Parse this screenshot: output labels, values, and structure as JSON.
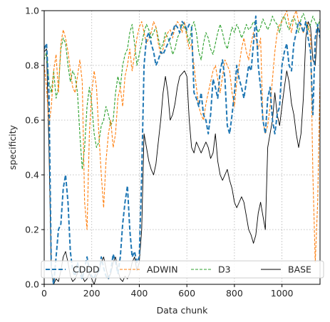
{
  "chart_data": {
    "type": "line",
    "xlabel": "Data chunk",
    "ylabel": "specificity",
    "xlim": [
      0,
      1160
    ],
    "ylim": [
      0,
      1.0
    ],
    "xticks": [
      0,
      200,
      400,
      600,
      800,
      1000
    ],
    "xtick_labels": [
      "0",
      "200",
      "400",
      "600",
      "800",
      "1000"
    ],
    "yticks": [
      0,
      0.2,
      0.4,
      0.6,
      0.8,
      1.0
    ],
    "ytick_labels": [
      "0.0",
      "0.2",
      "0.4",
      "0.6",
      "0.8",
      "1.0"
    ],
    "grid": true,
    "legend_position": "lower center",
    "series": [
      {
        "name": "CDDD",
        "color": "#1f77b4",
        "style": "dashed-thick",
        "x": [
          0,
          10,
          20,
          30,
          40,
          50,
          60,
          70,
          80,
          90,
          100,
          110,
          120,
          130,
          140,
          150,
          160,
          170,
          180,
          190,
          200,
          210,
          220,
          230,
          240,
          250,
          260,
          270,
          280,
          290,
          300,
          310,
          320,
          330,
          340,
          350,
          360,
          370,
          380,
          390,
          400,
          410,
          420,
          430,
          440,
          450,
          460,
          470,
          480,
          490,
          500,
          510,
          520,
          530,
          540,
          550,
          560,
          570,
          580,
          590,
          600,
          610,
          620,
          630,
          640,
          650,
          660,
          670,
          680,
          690,
          700,
          710,
          720,
          730,
          740,
          750,
          760,
          770,
          780,
          790,
          800,
          810,
          820,
          830,
          840,
          850,
          860,
          870,
          880,
          890,
          900,
          910,
          920,
          930,
          940,
          950,
          960,
          970,
          980,
          990,
          1000,
          1010,
          1020,
          1030,
          1040,
          1050,
          1060,
          1070,
          1080,
          1090,
          1100,
          1110,
          1120,
          1130,
          1140,
          1150,
          1160
        ],
        "values": [
          0.86,
          0.88,
          0.7,
          0.05,
          0.0,
          0.1,
          0.2,
          0.22,
          0.35,
          0.4,
          0.3,
          0.12,
          0.05,
          0.03,
          0.08,
          0.04,
          0.02,
          0.06,
          0.1,
          0.05,
          0.03,
          0.02,
          0.05,
          0.04,
          0.1,
          0.06,
          0.03,
          0.02,
          0.05,
          0.11,
          0.08,
          0.04,
          0.1,
          0.22,
          0.3,
          0.36,
          0.2,
          0.1,
          0.12,
          0.08,
          0.1,
          0.4,
          0.8,
          0.9,
          0.92,
          0.88,
          0.85,
          0.8,
          0.82,
          0.85,
          0.84,
          0.86,
          0.88,
          0.9,
          0.92,
          0.95,
          0.94,
          0.92,
          0.96,
          0.95,
          0.93,
          0.95,
          0.94,
          0.7,
          0.68,
          0.65,
          0.7,
          0.62,
          0.6,
          0.55,
          0.62,
          0.75,
          0.72,
          0.68,
          0.78,
          0.82,
          0.75,
          0.58,
          0.55,
          0.62,
          0.7,
          0.8,
          0.75,
          0.72,
          0.68,
          0.74,
          0.8,
          0.78,
          0.88,
          0.98,
          0.8,
          0.72,
          0.6,
          0.55,
          0.68,
          0.72,
          0.6,
          0.55,
          0.62,
          0.65,
          0.8,
          0.85,
          0.88,
          0.8,
          0.78,
          0.88,
          0.92,
          0.96,
          0.95,
          0.92,
          0.96,
          0.9,
          0.85,
          0.62,
          0.9,
          0.95,
          0.9
        ]
      },
      {
        "name": "ADWIN",
        "color": "#ff7f0e",
        "style": "dashed-thin",
        "x": [
          0,
          10,
          20,
          30,
          40,
          50,
          60,
          70,
          80,
          90,
          100,
          110,
          120,
          130,
          140,
          150,
          160,
          170,
          180,
          190,
          200,
          210,
          220,
          230,
          240,
          250,
          260,
          270,
          280,
          290,
          300,
          310,
          320,
          330,
          340,
          350,
          360,
          370,
          380,
          390,
          400,
          410,
          420,
          430,
          440,
          450,
          460,
          470,
          480,
          490,
          500,
          510,
          520,
          530,
          540,
          550,
          560,
          570,
          580,
          590,
          600,
          610,
          620,
          630,
          640,
          650,
          660,
          670,
          680,
          690,
          700,
          710,
          720,
          730,
          740,
          750,
          760,
          770,
          780,
          790,
          800,
          810,
          820,
          830,
          840,
          850,
          860,
          870,
          880,
          890,
          900,
          910,
          920,
          930,
          940,
          950,
          960,
          970,
          980,
          990,
          1000,
          1010,
          1020,
          1030,
          1040,
          1050,
          1060,
          1070,
          1080,
          1090,
          1100,
          1110,
          1120,
          1130,
          1140,
          1150,
          1160
        ],
        "values": [
          0.8,
          0.72,
          0.58,
          0.65,
          0.78,
          0.84,
          0.7,
          0.88,
          0.93,
          0.9,
          0.85,
          0.78,
          0.72,
          0.7,
          0.76,
          0.82,
          0.74,
          0.3,
          0.2,
          0.55,
          0.7,
          0.78,
          0.72,
          0.55,
          0.4,
          0.28,
          0.45,
          0.55,
          0.6,
          0.5,
          0.55,
          0.68,
          0.72,
          0.65,
          0.76,
          0.8,
          0.86,
          0.78,
          0.84,
          0.9,
          0.94,
          0.96,
          0.92,
          0.88,
          0.9,
          0.92,
          0.96,
          0.94,
          0.88,
          0.84,
          0.86,
          0.9,
          0.92,
          0.93,
          0.9,
          0.94,
          0.96,
          0.95,
          0.92,
          0.96,
          0.9,
          0.86,
          0.88,
          0.8,
          0.72,
          0.65,
          0.62,
          0.6,
          0.66,
          0.7,
          0.74,
          0.78,
          0.8,
          0.75,
          0.7,
          0.76,
          0.82,
          0.8,
          0.78,
          0.7,
          0.65,
          0.74,
          0.8,
          0.86,
          0.9,
          0.85,
          0.82,
          0.88,
          0.92,
          0.9,
          0.86,
          0.9,
          0.6,
          0.55,
          0.58,
          0.65,
          0.75,
          0.85,
          0.92,
          0.95,
          0.96,
          0.98,
          1.0,
          0.95,
          0.92,
          0.98,
          1.0,
          0.96,
          0.94,
          0.92,
          0.96,
          0.95,
          0.9,
          0.4,
          0.08,
          0.3,
          0.75
        ]
      },
      {
        "name": "D3",
        "color": "#2ca02c",
        "style": "dashed-thin",
        "x": [
          0,
          10,
          20,
          30,
          40,
          50,
          60,
          70,
          80,
          90,
          100,
          110,
          120,
          130,
          140,
          150,
          160,
          170,
          180,
          190,
          200,
          210,
          220,
          230,
          240,
          250,
          260,
          270,
          280,
          290,
          300,
          310,
          320,
          330,
          340,
          350,
          360,
          370,
          380,
          390,
          400,
          410,
          420,
          430,
          440,
          450,
          460,
          470,
          480,
          490,
          500,
          510,
          520,
          530,
          540,
          550,
          560,
          570,
          580,
          590,
          600,
          610,
          620,
          630,
          640,
          650,
          660,
          670,
          680,
          690,
          700,
          710,
          720,
          730,
          740,
          750,
          760,
          770,
          780,
          790,
          800,
          810,
          820,
          830,
          840,
          850,
          860,
          870,
          880,
          890,
          900,
          910,
          920,
          930,
          940,
          950,
          960,
          970,
          980,
          990,
          1000,
          1010,
          1020,
          1030,
          1040,
          1050,
          1060,
          1070,
          1080,
          1090,
          1100,
          1110,
          1120,
          1130,
          1140,
          1150,
          1160
        ],
        "values": [
          0.82,
          0.85,
          0.74,
          0.7,
          0.78,
          0.68,
          0.72,
          0.86,
          0.9,
          0.88,
          0.8,
          0.74,
          0.78,
          0.76,
          0.7,
          0.55,
          0.42,
          0.5,
          0.65,
          0.72,
          0.66,
          0.55,
          0.5,
          0.52,
          0.58,
          0.6,
          0.65,
          0.62,
          0.58,
          0.6,
          0.7,
          0.76,
          0.72,
          0.8,
          0.84,
          0.86,
          0.92,
          0.95,
          0.88,
          0.8,
          0.84,
          0.88,
          0.92,
          0.95,
          0.93,
          0.9,
          0.92,
          0.94,
          0.9,
          0.86,
          0.88,
          0.92,
          0.9,
          0.88,
          0.84,
          0.86,
          0.9,
          0.92,
          0.95,
          0.94,
          0.92,
          0.88,
          0.94,
          0.96,
          0.92,
          0.85,
          0.82,
          0.88,
          0.92,
          0.9,
          0.86,
          0.84,
          0.88,
          0.92,
          0.95,
          0.92,
          0.88,
          0.86,
          0.9,
          0.94,
          0.92,
          0.95,
          0.93,
          0.9,
          0.92,
          0.95,
          0.93,
          0.94,
          0.96,
          0.95,
          0.92,
          0.94,
          0.97,
          0.95,
          0.93,
          0.95,
          0.98,
          0.96,
          0.95,
          0.92,
          0.97,
          0.98,
          0.95,
          0.93,
          0.96,
          0.98,
          0.95,
          0.92,
          0.97,
          0.99,
          0.96,
          0.93,
          0.95,
          0.98,
          0.96,
          0.94,
          0.97
        ]
      },
      {
        "name": "BASE",
        "color": "#000000",
        "style": "solid-thin",
        "x": [
          0,
          10,
          20,
          30,
          40,
          50,
          60,
          70,
          80,
          90,
          100,
          110,
          120,
          130,
          140,
          150,
          160,
          170,
          180,
          190,
          200,
          210,
          220,
          230,
          240,
          250,
          260,
          270,
          280,
          290,
          300,
          310,
          320,
          330,
          340,
          350,
          360,
          370,
          380,
          390,
          400,
          410,
          420,
          430,
          440,
          450,
          460,
          470,
          480,
          490,
          500,
          510,
          520,
          530,
          540,
          550,
          560,
          570,
          580,
          590,
          600,
          610,
          620,
          630,
          640,
          650,
          660,
          670,
          680,
          690,
          700,
          710,
          720,
          730,
          740,
          750,
          760,
          770,
          780,
          790,
          800,
          810,
          820,
          830,
          840,
          850,
          860,
          870,
          880,
          890,
          900,
          910,
          920,
          930,
          940,
          950,
          960,
          970,
          980,
          990,
          1000,
          1010,
          1020,
          1030,
          1040,
          1050,
          1060,
          1070,
          1080,
          1090,
          1100,
          1110,
          1120,
          1130,
          1140,
          1150,
          1160
        ],
        "values": [
          0.85,
          0.86,
          0.5,
          0.05,
          0.0,
          0.02,
          0.01,
          0.05,
          0.1,
          0.12,
          0.08,
          0.03,
          0.01,
          0.02,
          0.04,
          0.06,
          0.03,
          0.01,
          0.02,
          0.04,
          0.02,
          0.0,
          0.03,
          0.05,
          0.08,
          0.1,
          0.06,
          0.02,
          0.04,
          0.08,
          0.1,
          0.05,
          0.02,
          0.01,
          0.03,
          0.02,
          0.04,
          0.08,
          0.1,
          0.05,
          0.08,
          0.2,
          0.55,
          0.5,
          0.45,
          0.42,
          0.4,
          0.44,
          0.52,
          0.6,
          0.7,
          0.76,
          0.7,
          0.6,
          0.62,
          0.66,
          0.72,
          0.76,
          0.77,
          0.78,
          0.76,
          0.6,
          0.5,
          0.48,
          0.52,
          0.5,
          0.48,
          0.5,
          0.52,
          0.5,
          0.46,
          0.48,
          0.55,
          0.45,
          0.4,
          0.38,
          0.4,
          0.42,
          0.38,
          0.35,
          0.3,
          0.28,
          0.3,
          0.32,
          0.3,
          0.25,
          0.2,
          0.18,
          0.15,
          0.18,
          0.26,
          0.3,
          0.25,
          0.2,
          0.5,
          0.55,
          0.6,
          0.7,
          0.62,
          0.58,
          0.65,
          0.72,
          0.78,
          0.74,
          0.66,
          0.62,
          0.55,
          0.5,
          0.55,
          0.68,
          0.9,
          0.96,
          0.94,
          0.82,
          0.8,
          0.94,
          0.92
        ]
      }
    ]
  }
}
